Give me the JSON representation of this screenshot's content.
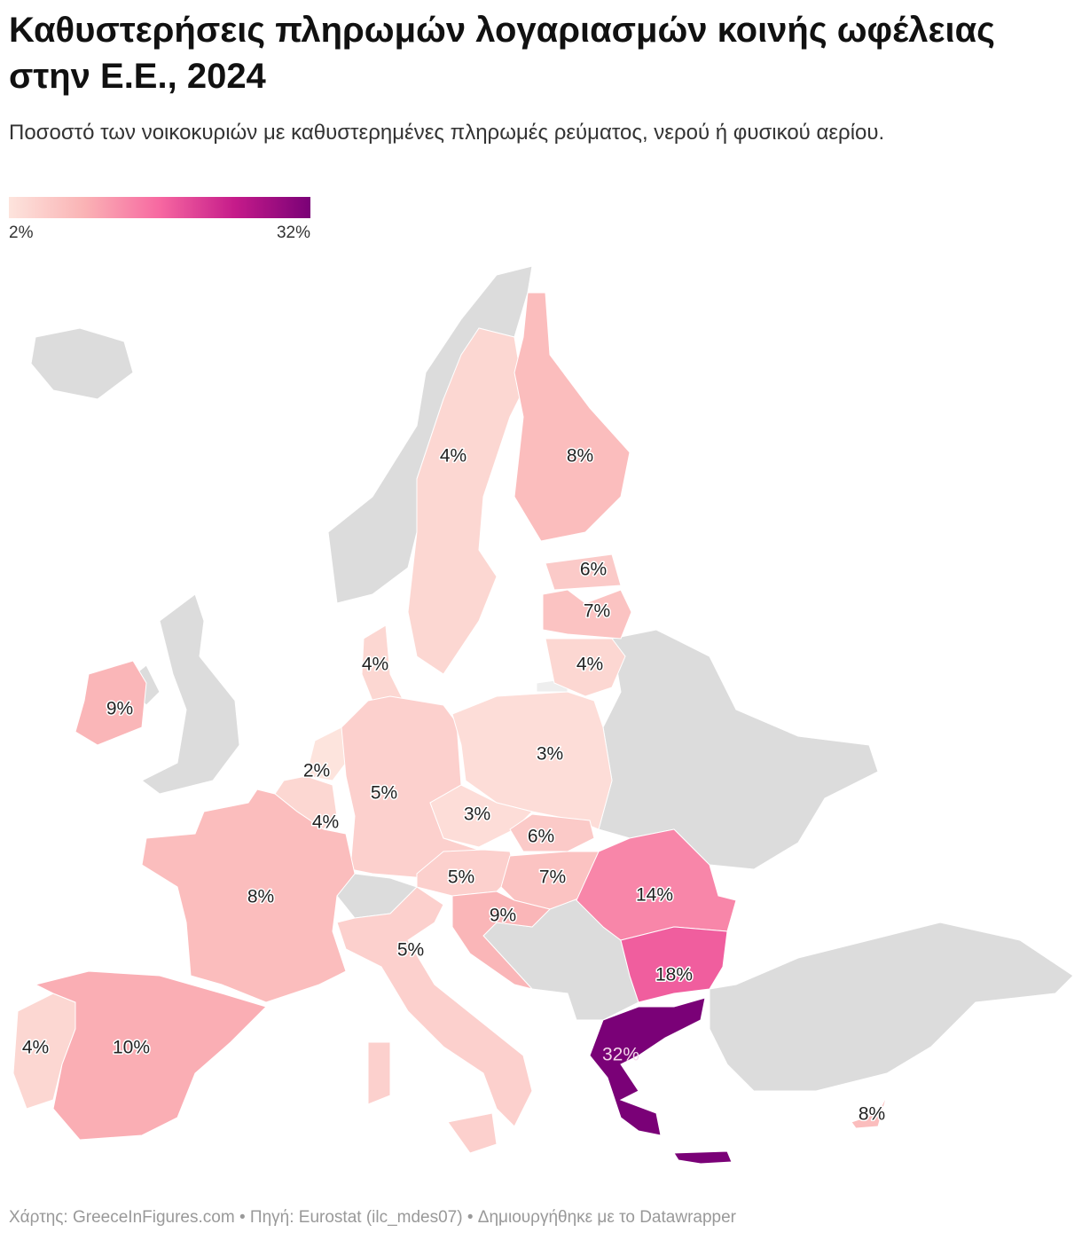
{
  "chart_data": {
    "type": "choropleth",
    "title": "Καθυστερήσεις πληρωμών λογαριασμών κοινής ωφέλειας στην Ε.Ε., 2024",
    "subtitle": "Ποσοστό των νοικοκυριών με καθυστερημένες πληρωμές ρεύματος, νερού ή φυσικού αερίου.",
    "legend_ticks": [
      {
        "value": 2,
        "label": "2%"
      },
      {
        "value": 32,
        "label": "32%"
      }
    ],
    "colors": [
      "#fde4dd",
      "#fab3b5",
      "#f768a1",
      "#c51b8a",
      "#7a0177"
    ],
    "values": [
      4,
      8,
      6,
      7,
      4,
      4,
      9,
      2,
      5,
      3,
      4,
      3,
      6,
      5,
      7,
      14,
      8,
      9,
      5,
      18,
      32,
      4,
      10,
      8
    ],
    "value_labels": [
      "4%",
      "8%",
      "6%",
      "7%",
      "4%",
      "4%",
      "9%",
      "2%",
      "5%",
      "3%",
      "4%",
      "3%",
      "6%",
      "5%",
      "7%",
      "14%",
      "8%",
      "9%",
      "5%",
      "18%",
      "32%",
      "4%",
      "10%",
      "8%"
    ],
    "footer": "Χάρτης: GreeceInFigures.com • Πηγή: Eurostat (ilc_mdes07)  • Δημιουργήθηκε με το Datawrapper"
  }
}
